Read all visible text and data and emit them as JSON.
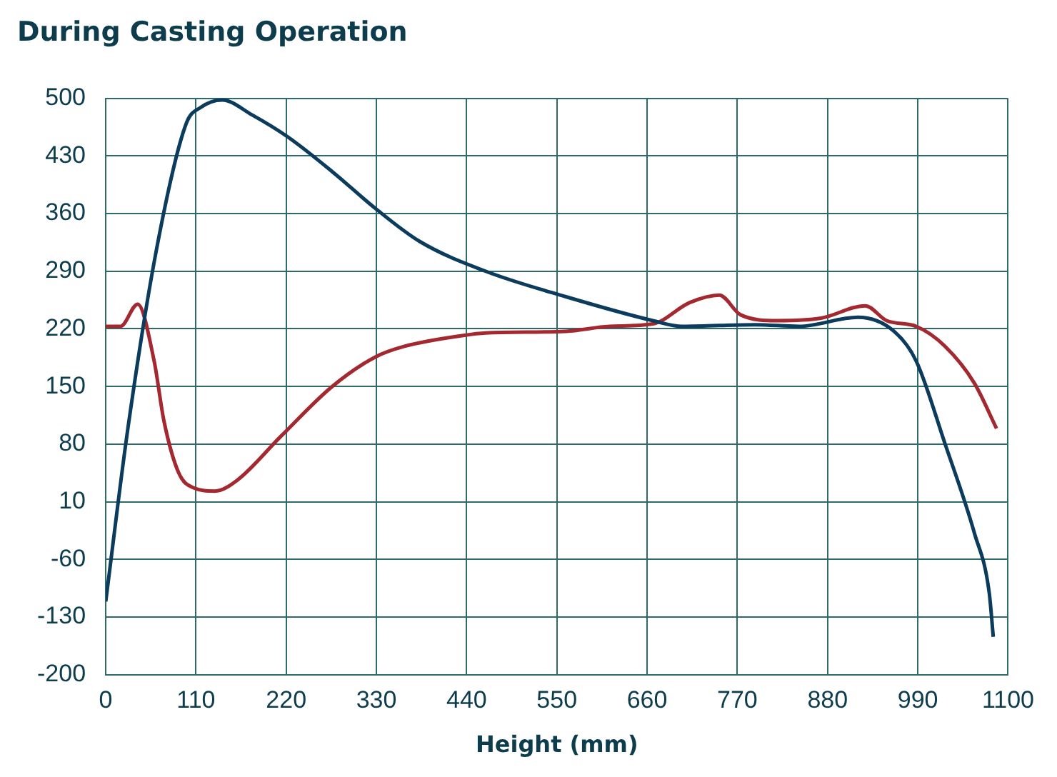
{
  "chart_data": {
    "type": "line",
    "title": "During Casting Operation",
    "xlabel": "Height (mm)",
    "xlim": [
      0,
      1100
    ],
    "xticks": [
      0,
      110,
      220,
      330,
      440,
      550,
      660,
      770,
      880,
      990,
      1100
    ],
    "ylim": [
      -200,
      500
    ],
    "yticks": [
      -200,
      -130,
      -60,
      10,
      80,
      150,
      220,
      290,
      360,
      430,
      500
    ],
    "grid": true,
    "legend": false,
    "marker": "none",
    "line_style": "solid",
    "series": [
      {
        "color": "#0b3c5d",
        "x": [
          0,
          27,
          62,
          98,
          116,
          142,
          178,
          222,
          276,
          329,
          383,
          463,
          561,
          667,
          703,
          792,
          845,
          917,
          961,
          988,
          1023,
          1059,
          1077,
          1082
        ],
        "values": [
          -111,
          99,
          317,
          469,
          489,
          498,
          480,
          453,
          411,
          366,
          326,
          290,
          259,
          230,
          223,
          225,
          223,
          234,
          217,
          181,
          81,
          -28,
          -100,
          -154
        ]
      },
      {
        "color": "#a3282f",
        "x": [
          0,
          18,
          39,
          59,
          71,
          89,
          107,
          133,
          160,
          214,
          276,
          329,
          365,
          436,
          463,
          561,
          614,
          667,
          712,
          748,
          774,
          819,
          872,
          926,
          952,
          988,
          1023,
          1059,
          1086
        ],
        "values": [
          223,
          223,
          250,
          181,
          108,
          45,
          27,
          23,
          36,
          90,
          150,
          186,
          199,
          212,
          215,
          217,
          223,
          226,
          252,
          261,
          237,
          230,
          233,
          248,
          230,
          223,
          199,
          154,
          99
        ]
      }
    ]
  }
}
